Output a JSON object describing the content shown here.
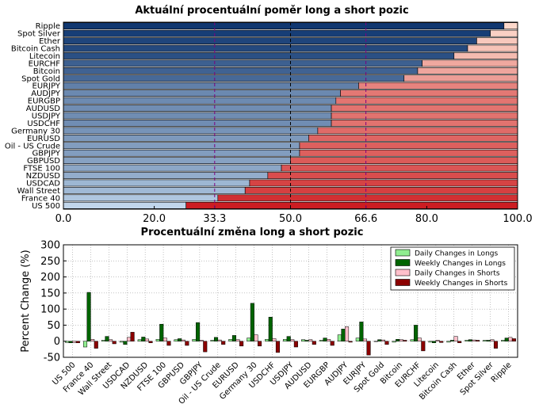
{
  "chart_data": [
    {
      "type": "bar",
      "orientation": "horizontal",
      "stacked": true,
      "title": "Aktuální procentuální poměr long a short pozic",
      "categories": [
        "Ripple",
        "Spot Silver",
        "Ether",
        "Bitcoin Cash",
        "Litecoin",
        "EURCHF",
        "Bitcoin",
        "Spot Gold",
        "EURJPY",
        "AUDJPY",
        "EURGBP",
        "AUDUSD",
        "USDJPY",
        "USDCHF",
        "Germany 30",
        "EURUSD",
        "Oil - US Crude",
        "GBPJPY",
        "GBPUSD",
        "FTSE 100",
        "NZDUSD",
        "USDCAD",
        "Wall Street",
        "France 40",
        "US 500"
      ],
      "long_values": [
        97,
        94,
        91,
        89,
        86,
        79,
        78,
        75,
        65,
        61,
        60,
        59,
        59,
        59,
        56,
        54,
        52,
        52,
        50,
        48,
        45,
        41,
        40,
        34,
        27
      ],
      "xlim": [
        0,
        100
      ],
      "xticks": [
        "0.0",
        "20.0",
        "33.3",
        "50.0",
        "66.6",
        "80.0",
        "100.0"
      ],
      "tick_values": [
        0,
        20,
        33.3,
        50,
        66.6,
        80,
        100
      ],
      "highlight_ticks": [
        33.3,
        66.6
      ],
      "reference_lines": [
        33.3,
        50,
        66.6
      ]
    },
    {
      "type": "bar",
      "title": "Procentuální změna long a short pozic",
      "ylabel": "Percent Change (%)",
      "ylim": [
        -50,
        300
      ],
      "yticks": [
        -50,
        0,
        50,
        100,
        150,
        200,
        250,
        300
      ],
      "categories": [
        "US 500",
        "France 40",
        "Wall Street",
        "USDCAD",
        "NZDUSD",
        "FTSE 100",
        "GBPUSD",
        "GBPJPY",
        "Oil - US Crude",
        "EURUSD",
        "Germany 30",
        "USDCHF",
        "USDJPY",
        "AUDUSD",
        "EURGBP",
        "AUDJPY",
        "EURJPY",
        "Spot Gold",
        "Bitcoin",
        "EURCHF",
        "Litecoin",
        "Bitcoin Cash",
        "Ether",
        "Spot Silver",
        "Ripple"
      ],
      "series": [
        {
          "name": "Daily Changes in Longs",
          "values": [
            -4,
            -18,
            3,
            -3,
            5,
            6,
            5,
            6,
            3,
            6,
            10,
            6,
            6,
            5,
            3,
            20,
            10,
            0,
            -3,
            5,
            -3,
            -3,
            3,
            3,
            3
          ]
        },
        {
          "name": "Weekly Changes in Longs",
          "values": [
            -5,
            152,
            15,
            -10,
            13,
            53,
            8,
            58,
            12,
            18,
            118,
            75,
            15,
            3,
            10,
            38,
            60,
            5,
            6,
            50,
            -5,
            3,
            5,
            3,
            10
          ]
        },
        {
          "name": "Daily Changes in Shorts",
          "values": [
            -4,
            6,
            5,
            12,
            7,
            10,
            4,
            3,
            4,
            5,
            20,
            8,
            5,
            5,
            6,
            45,
            7,
            4,
            5,
            10,
            3,
            15,
            4,
            5,
            12
          ]
        },
        {
          "name": "Weekly Changes in Shorts",
          "values": [
            -5,
            -22,
            -8,
            28,
            -5,
            -13,
            -13,
            -33,
            -10,
            -15,
            -15,
            -35,
            -18,
            -10,
            -13,
            -3,
            -43,
            -10,
            3,
            -30,
            -4,
            -5,
            3,
            -22,
            8
          ]
        }
      ],
      "colors": {
        "daily_longs": "#90ee90",
        "weekly_longs": "#006400",
        "daily_shorts": "#ffc0cb",
        "weekly_shorts": "#8b0000"
      },
      "legend": {
        "placement": "top-right",
        "entries": [
          "Daily Changes in Longs",
          "Weekly Changes in Longs",
          "Daily Changes in Shorts",
          "Weekly Changes in Shorts"
        ]
      }
    }
  ]
}
